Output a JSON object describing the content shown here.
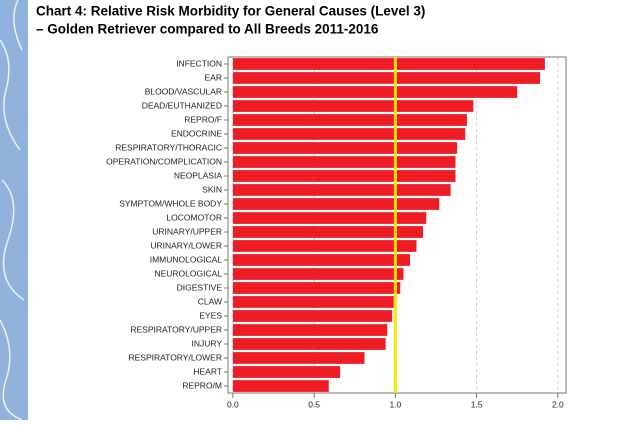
{
  "chart_data": {
    "type": "bar",
    "orientation": "horizontal",
    "title": "Chart 4: Relative Risk Morbidity for General Causes (Level 3)",
    "subtitle": "–  Golden Retriever compared to All Breeds 2011-2016",
    "categories": [
      "INFECTION",
      "EAR",
      "BLOOD/VASCULAR",
      "DEAD/EUTHANIZED",
      "REPRO/F",
      "ENDOCRINE",
      "RESPIRATORY/THORACIC",
      "OPERATION/COMPLICATION",
      "NEOPLASIA",
      "SKIN",
      "SYMPTOM/WHOLE BODY",
      "LOCOMOTOR",
      "URINARY/UPPER",
      "URINARY/LOWER",
      "IMMUNOLOGICAL",
      "NEUROLOGICAL",
      "DIGESTIVE",
      "CLAW",
      "EYES",
      "RESPIRATORY/UPPER",
      "INJURY",
      "RESPIRATORY/LOWER",
      "HEART",
      "REPRO/M"
    ],
    "values": [
      1.92,
      1.89,
      1.75,
      1.48,
      1.44,
      1.43,
      1.38,
      1.37,
      1.37,
      1.34,
      1.27,
      1.19,
      1.17,
      1.13,
      1.09,
      1.05,
      1.03,
      0.99,
      0.98,
      0.95,
      0.94,
      0.81,
      0.66,
      0.59
    ],
    "color": "#ee1c25",
    "reference_line": 1,
    "reference_color": "#ffe600",
    "xlim": [
      -0.03,
      2.05
    ],
    "xticks": [
      {
        "value": 0,
        "label": "0.0"
      },
      0.5,
      {
        "value": 1,
        "label": "1.0"
      },
      1.5,
      {
        "value": 2,
        "label": "2.0"
      }
    ],
    "grid": true
  }
}
